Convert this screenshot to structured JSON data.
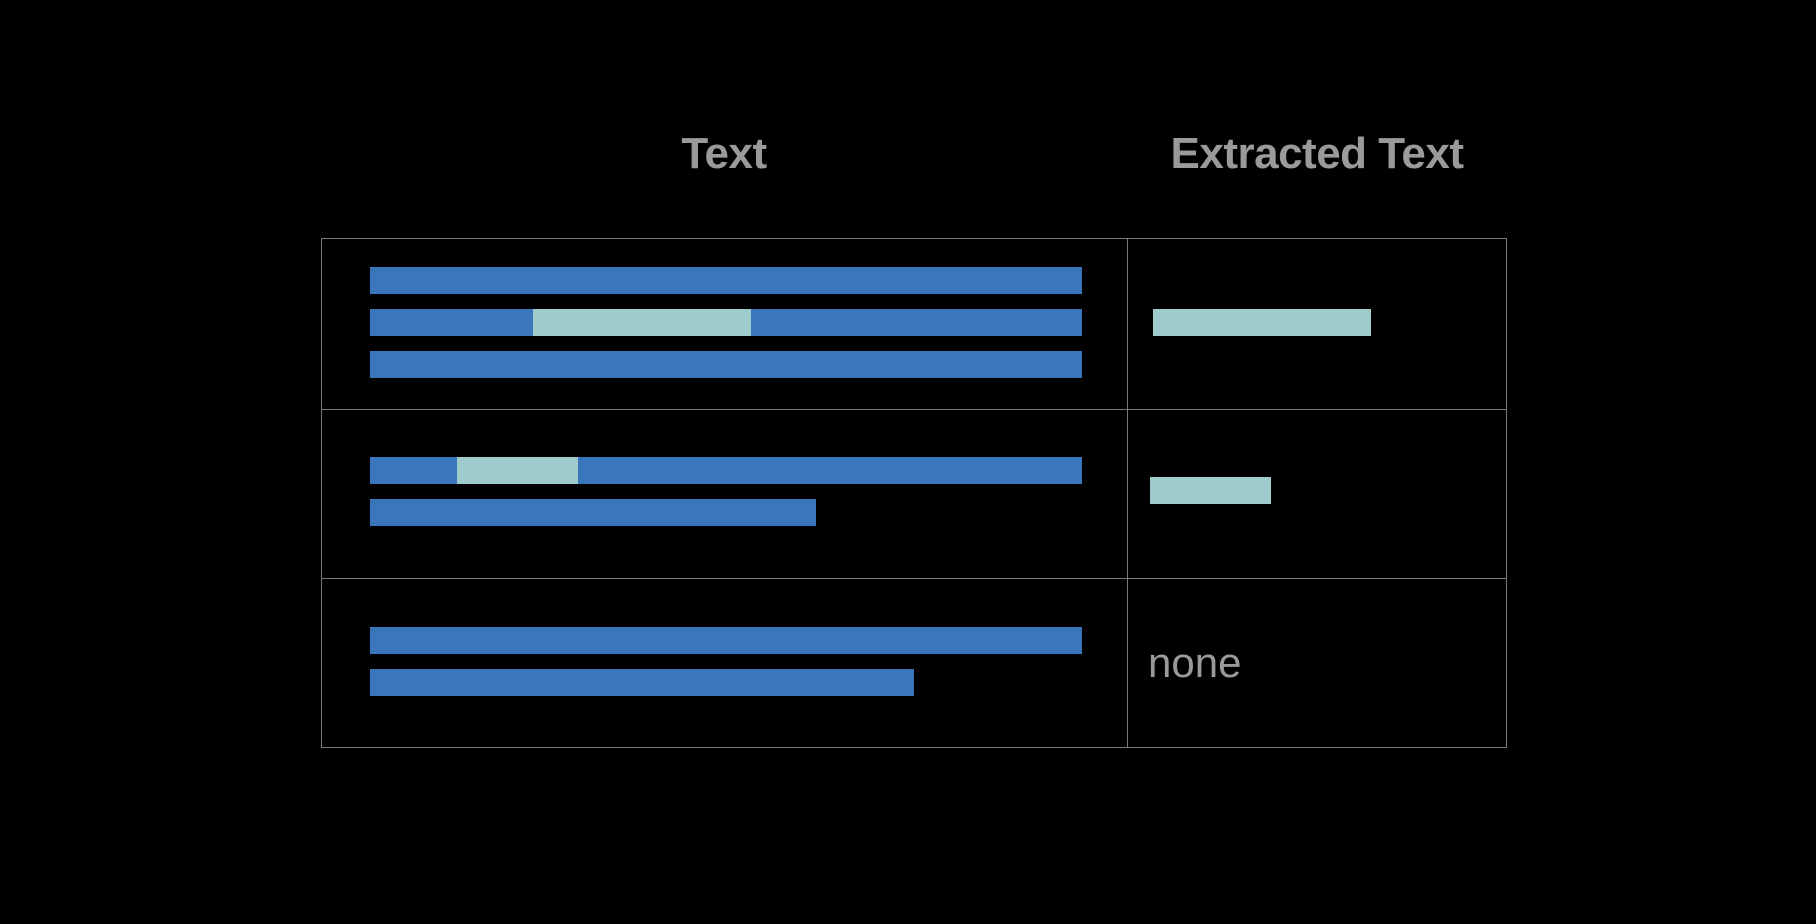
{
  "headers": {
    "text": "Text",
    "extracted_text": "Extracted Text"
  },
  "rows": [
    {
      "extracted": "highlighted"
    },
    {
      "extracted": "highlighted"
    },
    {
      "extracted_label": "none"
    }
  ],
  "colors": {
    "background": "#000000",
    "text_line": "#3a76bb",
    "highlight": "#a0cbcc",
    "border": "#7a7a7a",
    "header_text": "#9a9a9a"
  }
}
